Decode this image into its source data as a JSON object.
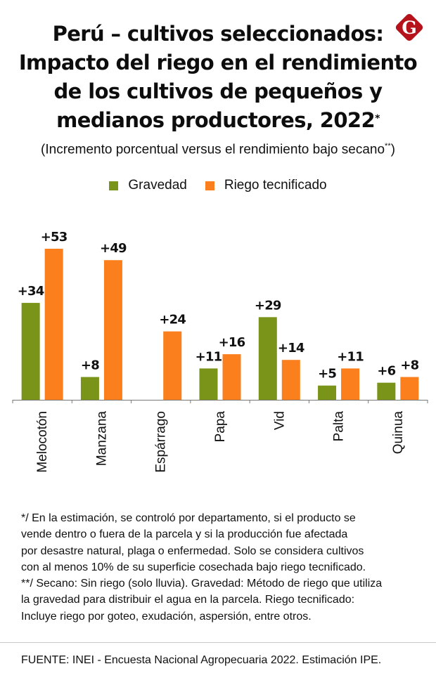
{
  "header": {
    "title_lines": [
      "Perú – cultivos seleccionados:",
      "Impacto del riego en el rendimiento",
      "de los cultivos de pequeños y",
      "medianos productores, 2022"
    ],
    "title_mark": "*",
    "subtitle": "(Incremento porcentual versus el rendimiento bajo secano",
    "subtitle_mark": "**",
    "subtitle_close": ")",
    "logo_letter": "G",
    "logo_icon": "gestion-logo-icon"
  },
  "colors": {
    "gravedad": "#7a9419",
    "riego": "#fb7f1c",
    "logo": "#b5121b",
    "axis": "#777777"
  },
  "chart_data": {
    "type": "bar",
    "title": "Perú – cultivos seleccionados: Impacto del riego en el rendimiento de los cultivos de pequeños y medianos productores, 2022*",
    "subtitle": "(Incremento porcentual versus el rendimiento bajo secano**)",
    "xlabel": "",
    "ylabel": "",
    "ylim": [
      0,
      53
    ],
    "grid": false,
    "legend_position": "top-center",
    "categories": [
      "Melocotón",
      "Manzana",
      "Espárrago",
      "Papa",
      "Vid",
      "Palta",
      "Quinua"
    ],
    "series": [
      {
        "name": "Gravedad",
        "values": [
          34,
          8,
          null,
          11,
          29,
          5,
          6
        ],
        "labels": [
          "+34",
          "+8",
          "",
          "+11",
          "+29",
          "+5",
          "+6"
        ]
      },
      {
        "name": "Riego tecnificado",
        "values": [
          53,
          49,
          24,
          16,
          14,
          11,
          8
        ],
        "labels": [
          "+53",
          "+49",
          "+24",
          "+16",
          "+14",
          "+11",
          "+8"
        ]
      }
    ]
  },
  "footnotes": [
    "*/ En la estimación, se controló por departamento, si el producto se",
    "vende dentro o fuera de la parcela y si la producción fue afectada",
    "por desastre natural, plaga o enfermedad. Solo se considera cultivos",
    "con al menos 10% de su superficie cosechada bajo riego tecnificado.",
    "**/ Secano: Sin riego (solo lluvia). Gravedad: Método de riego que utiliza",
    "la gravedad para distribuir el agua en la parcela. Riego tecnificado:",
    "Incluye riego por goteo, exudación, aspersión, entre otros."
  ],
  "source": "FUENTE: INEI - Encuesta Nacional Agropecuaria 2022. Estimación IPE."
}
